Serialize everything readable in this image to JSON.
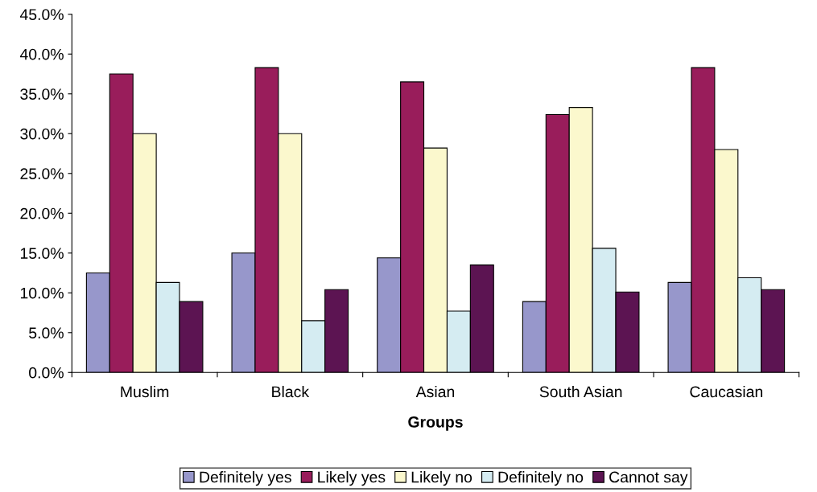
{
  "chart_data": {
    "type": "bar",
    "xlabel": "Groups",
    "categories": [
      "Muslim",
      "Black",
      "Asian",
      "South Asian",
      "Caucasian"
    ],
    "series": [
      {
        "name": "Definitely yes",
        "color": "#9797cb",
        "values": [
          12.5,
          15.0,
          14.4,
          8.9,
          11.3
        ]
      },
      {
        "name": "Likely yes",
        "color": "#991d5b",
        "values": [
          37.5,
          38.3,
          36.5,
          32.4,
          38.3
        ]
      },
      {
        "name": "Likely no",
        "color": "#fbf8cd",
        "values": [
          30.0,
          30.0,
          28.2,
          33.3,
          28.0
        ]
      },
      {
        "name": "Definitely no",
        "color": "#d5ecf2",
        "values": [
          11.3,
          6.5,
          7.7,
          15.6,
          11.9
        ]
      },
      {
        "name": "Cannot say",
        "color": "#5c1452",
        "values": [
          8.9,
          10.4,
          13.5,
          10.1,
          10.4
        ]
      }
    ],
    "ylim": [
      0,
      45
    ],
    "yticks": [
      {
        "value": 0,
        "label": "0.0%"
      },
      {
        "value": 5,
        "label": "5.0%"
      },
      {
        "value": 10,
        "label": "10.0%"
      },
      {
        "value": 15,
        "label": "15.0%"
      },
      {
        "value": 20,
        "label": "20.0%"
      },
      {
        "value": 25,
        "label": "25.0%"
      },
      {
        "value": 30,
        "label": "30.0%"
      },
      {
        "value": 35,
        "label": "35.0%"
      },
      {
        "value": 40,
        "label": "40.0%"
      },
      {
        "value": 45,
        "label": "45.0%"
      }
    ],
    "grid": false,
    "legend": "bottom"
  }
}
